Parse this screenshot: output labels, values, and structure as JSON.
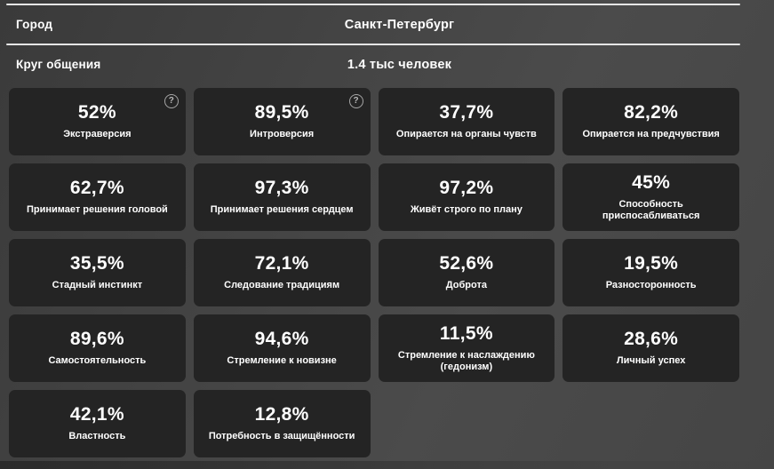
{
  "colors": {
    "page_bg_from": "#3a3a3a",
    "page_bg_mid": "#4b4b4b",
    "page_bg_to": "#454545",
    "card_bg": "#242424",
    "divider_line": "#e6e6e6",
    "text": "#ffffff",
    "help_icon": "#a6a6a6"
  },
  "icons": {
    "help_glyph": "?"
  },
  "header": {
    "rows": [
      {
        "label": "Город",
        "value": "Санкт-Петербург"
      },
      {
        "label": "Круг общения",
        "value": "1.4 тыс человек"
      }
    ]
  },
  "cards": [
    {
      "value": "52%",
      "label": "Экстраверсия",
      "help": true
    },
    {
      "value": "89,5%",
      "label": "Интроверсия",
      "help": true
    },
    {
      "value": "37,7%",
      "label": "Опирается на органы чувств"
    },
    {
      "value": "82,2%",
      "label": "Опирается на предчувствия"
    },
    {
      "value": "62,7%",
      "label": "Принимает решения головой"
    },
    {
      "value": "97,3%",
      "label": "Принимает решения сердцем"
    },
    {
      "value": "97,2%",
      "label": "Живёт строго по плану"
    },
    {
      "value": "45%",
      "label": "Способность приспосабливаться"
    },
    {
      "value": "35,5%",
      "label": "Стадный инстинкт"
    },
    {
      "value": "72,1%",
      "label": "Следование традициям"
    },
    {
      "value": "52,6%",
      "label": "Доброта"
    },
    {
      "value": "19,5%",
      "label": "Разносторонность"
    },
    {
      "value": "89,6%",
      "label": "Самостоятельность"
    },
    {
      "value": "94,6%",
      "label": "Стремление к новизне"
    },
    {
      "value": "11,5%",
      "label": "Стремление к наслаждению (гедонизм)"
    },
    {
      "value": "28,6%",
      "label": "Личный успех"
    },
    {
      "value": "42,1%",
      "label": "Властность"
    },
    {
      "value": "12,8%",
      "label": "Потребность в защищённости"
    }
  ]
}
